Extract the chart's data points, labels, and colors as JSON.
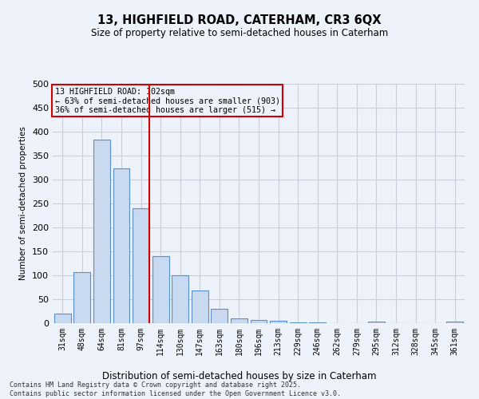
{
  "title1": "13, HIGHFIELD ROAD, CATERHAM, CR3 6QX",
  "title2": "Size of property relative to semi-detached houses in Caterham",
  "xlabel": "Distribution of semi-detached houses by size in Caterham",
  "ylabel": "Number of semi-detached properties",
  "categories": [
    "31sqm",
    "48sqm",
    "64sqm",
    "81sqm",
    "97sqm",
    "114sqm",
    "130sqm",
    "147sqm",
    "163sqm",
    "180sqm",
    "196sqm",
    "213sqm",
    "229sqm",
    "246sqm",
    "262sqm",
    "279sqm",
    "295sqm",
    "312sqm",
    "328sqm",
    "345sqm",
    "361sqm"
  ],
  "values": [
    20,
    107,
    383,
    323,
    240,
    140,
    100,
    68,
    30,
    10,
    6,
    5,
    1,
    1,
    0,
    0,
    3,
    0,
    0,
    0,
    3
  ],
  "bar_color": "#c9d9f0",
  "bar_edge_color": "#5b8fc9",
  "vline_index": 4,
  "vline_color": "#cc0000",
  "property_label": "13 HIGHFIELD ROAD: 102sqm",
  "pct_smaller": 63,
  "n_smaller": 903,
  "pct_larger": 36,
  "n_larger": 515,
  "ylim": [
    0,
    500
  ],
  "yticks": [
    0,
    50,
    100,
    150,
    200,
    250,
    300,
    350,
    400,
    450,
    500
  ],
  "annotation_box_color": "#cc0000",
  "footnote": "Contains HM Land Registry data © Crown copyright and database right 2025.\nContains public sector information licensed under the Open Government Licence v3.0.",
  "bg_color": "#eef2fa",
  "grid_color": "#c8d0e0"
}
